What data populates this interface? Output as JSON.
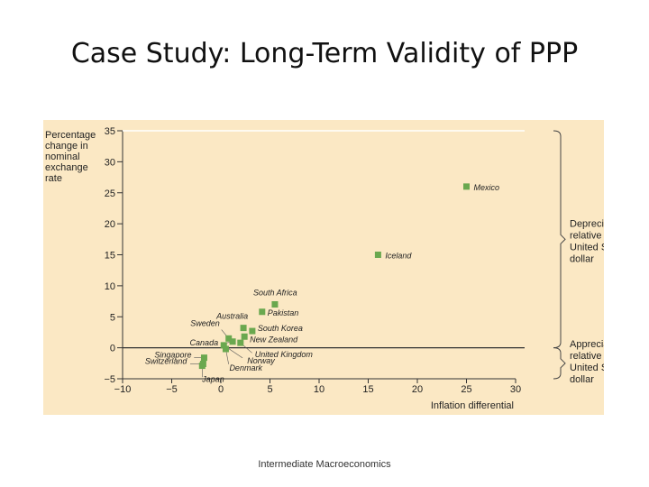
{
  "slide": {
    "title": "Case Study: Long-Term Validity of PPP",
    "footer": "Intermediate Macroeconomics"
  },
  "chart_data": {
    "type": "scatter",
    "ylabel_lines": [
      "Percentage",
      "change in",
      "nominal",
      "exchange",
      "rate"
    ],
    "xlabel": "Inflation differential",
    "xlim": [
      -10,
      30
    ],
    "ylim": [
      -5,
      35
    ],
    "x_ticks": [
      -10,
      -5,
      0,
      5,
      10,
      15,
      20,
      25,
      30
    ],
    "y_ticks": [
      -5,
      0,
      5,
      10,
      15,
      20,
      25,
      30,
      35
    ],
    "x_tick_labels": [
      "−10",
      "−5",
      "0",
      "5",
      "10",
      "15",
      "20",
      "25",
      "30"
    ],
    "y_tick_labels": [
      "−5",
      "0",
      "5",
      "10",
      "15",
      "20",
      "25",
      "30",
      "35"
    ],
    "marker_color": "#6aa84f",
    "background_color": "#fbe8c4",
    "points": [
      {
        "label": "Mexico",
        "x": 25,
        "y": 26
      },
      {
        "label": "Iceland",
        "x": 16,
        "y": 15
      },
      {
        "label": "South Africa",
        "x": 5.5,
        "y": 7
      },
      {
        "label": "Pakistan",
        "x": 4.2,
        "y": 5.8
      },
      {
        "label": "Australia",
        "x": 2.3,
        "y": 3.2
      },
      {
        "label": "South Korea",
        "x": 3.2,
        "y": 2.7
      },
      {
        "label": "New Zealand",
        "x": 2.4,
        "y": 1.8
      },
      {
        "label": "Sweden",
        "x": 0.8,
        "y": 1.5
      },
      {
        "label": "Canada",
        "x": 1.2,
        "y": 1.0
      },
      {
        "label": "United Kingdom",
        "x": 2.0,
        "y": 0.8
      },
      {
        "label": "Norway",
        "x": 0.3,
        "y": 0.4
      },
      {
        "label": "Denmark",
        "x": 0.5,
        "y": -0.2
      },
      {
        "label": "Singapore",
        "x": -1.7,
        "y": -1.6
      },
      {
        "label": "Switzerland",
        "x": -1.8,
        "y": -2.6
      },
      {
        "label": "Japan",
        "x": -1.9,
        "y": -2.9
      }
    ],
    "annotations": [
      {
        "text_lines": [
          "Depreciation",
          "relative to",
          "United States",
          "dollar"
        ],
        "y_range": [
          0,
          35
        ]
      },
      {
        "text_lines": [
          "Appreciation",
          "relative to",
          "United States",
          "dollar"
        ],
        "y_range": [
          -5,
          0
        ]
      }
    ]
  }
}
